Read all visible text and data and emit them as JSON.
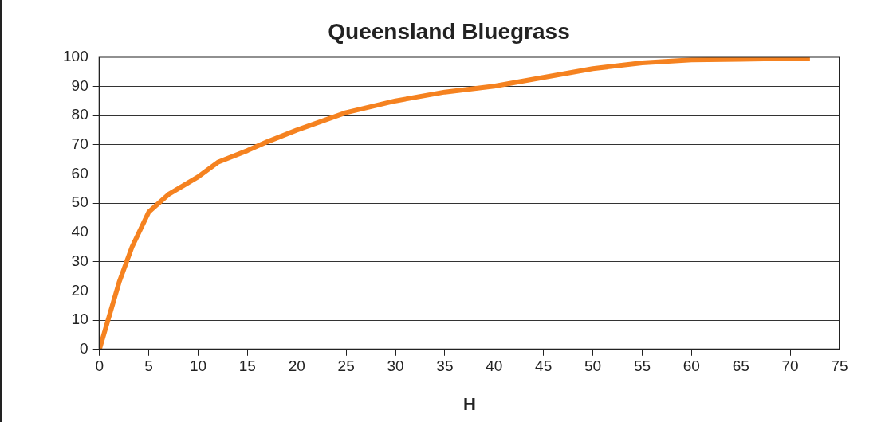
{
  "chart_data": {
    "type": "line",
    "title": "Queensland Bluegrass",
    "xlabel": "H",
    "series": [
      {
        "color": "#f58220",
        "x": [
          0,
          2,
          3.3,
          5,
          7,
          10,
          12,
          15,
          17,
          20,
          22.5,
          25,
          30,
          35,
          40,
          45,
          50,
          55,
          60,
          65,
          72
        ],
        "values": [
          0,
          23,
          35,
          47,
          53,
          59,
          64,
          68,
          71,
          75,
          78,
          81,
          85,
          88,
          90,
          93,
          96,
          98,
          99,
          99.2,
          99.6
        ]
      }
    ],
    "xlim": [
      0,
      75
    ],
    "xticks": [
      0,
      5,
      10,
      15,
      20,
      25,
      30,
      35,
      40,
      45,
      50,
      55,
      60,
      65,
      70,
      75
    ],
    "ylim": [
      0,
      100
    ],
    "yticks": [
      0,
      10,
      20,
      30,
      40,
      50,
      60,
      70,
      80,
      90,
      100
    ],
    "grid": "y",
    "legend": false,
    "marker": "none",
    "line_style": "solid"
  }
}
